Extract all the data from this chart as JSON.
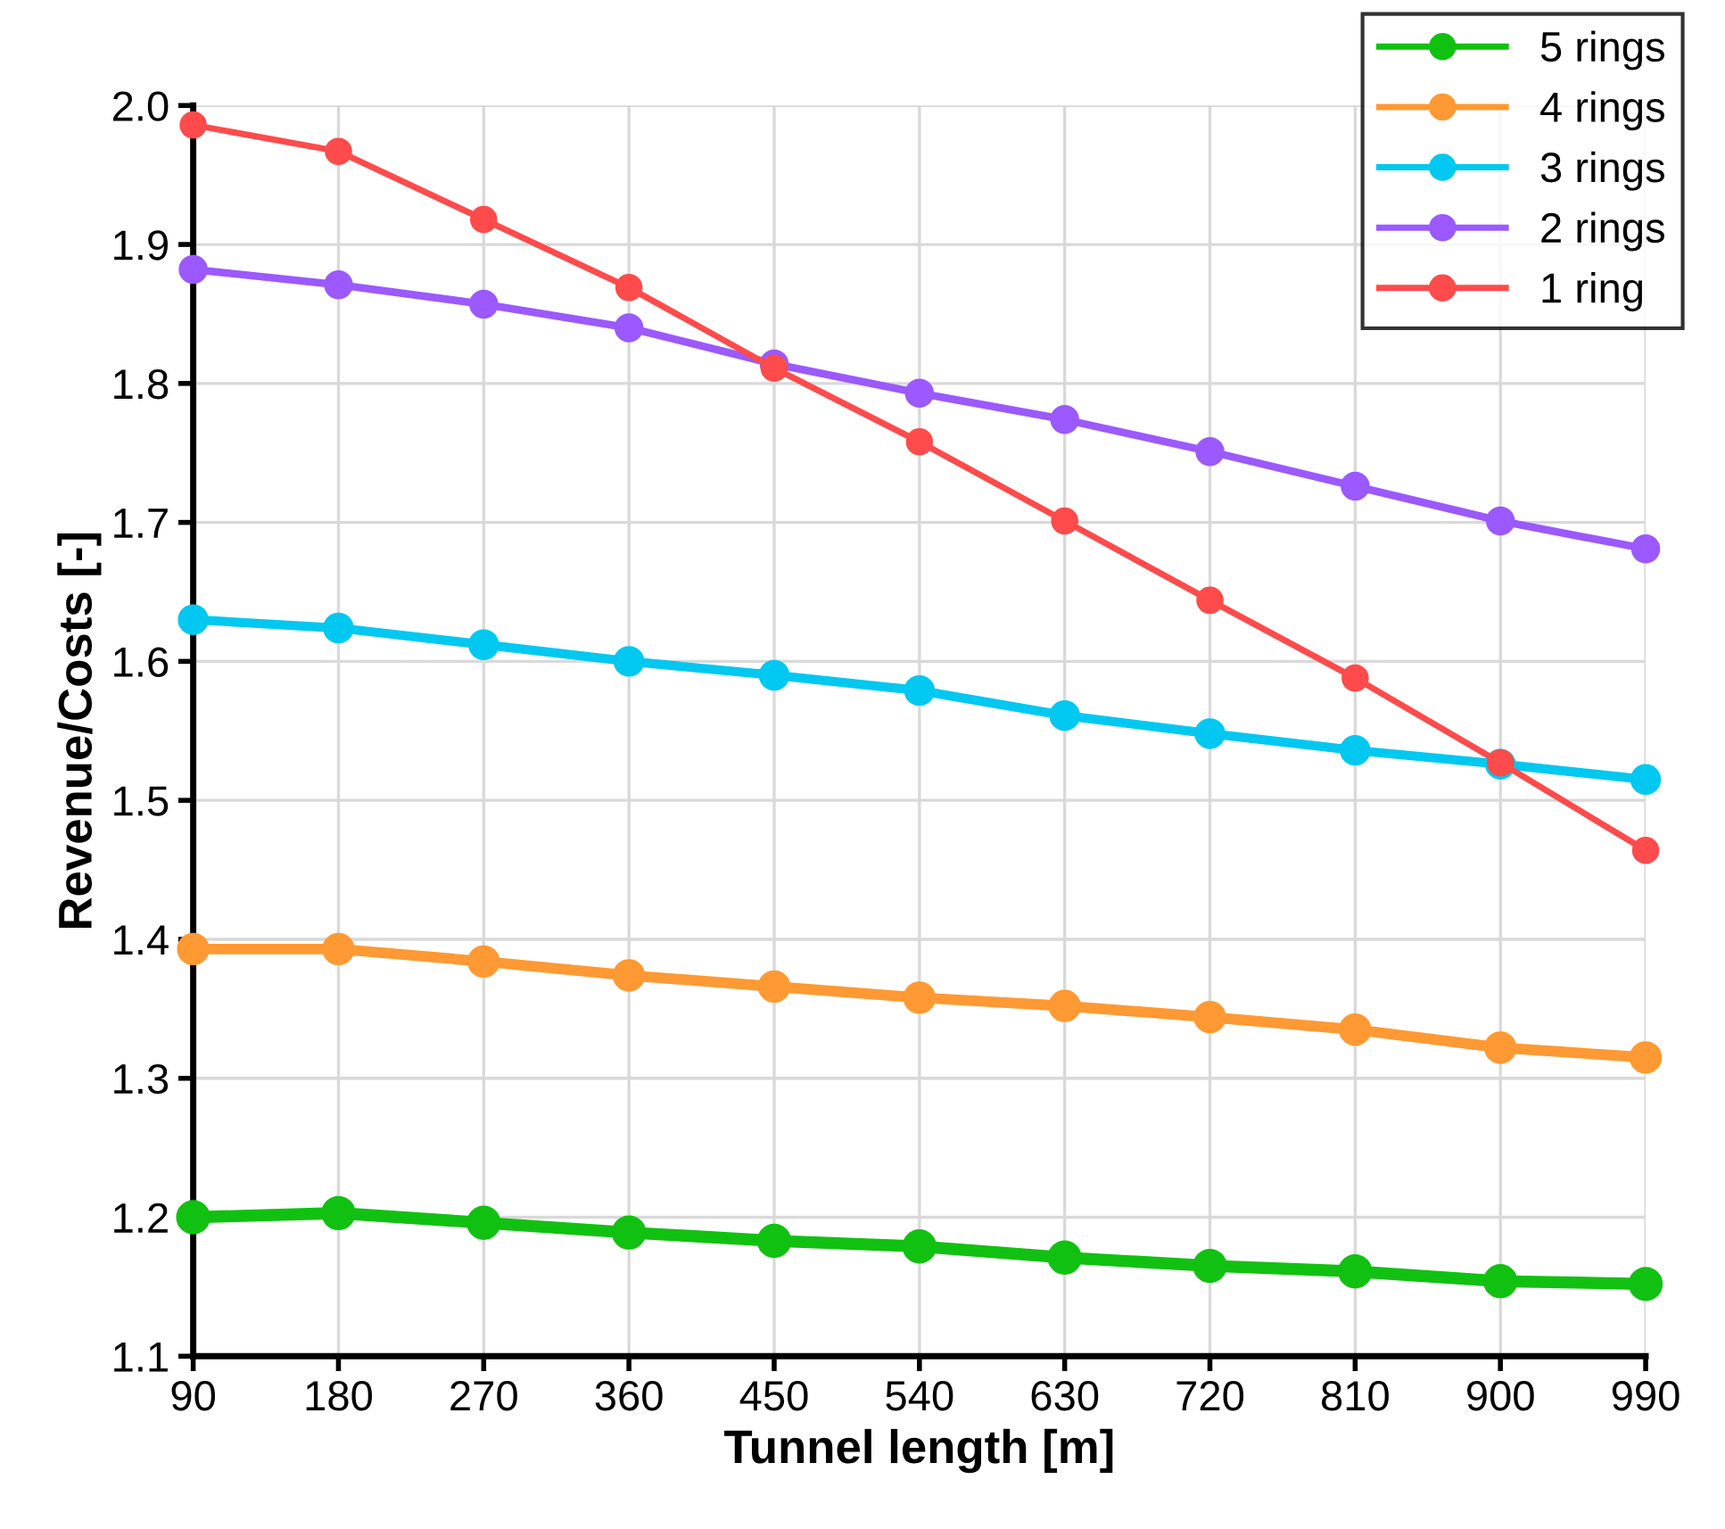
{
  "chart_data": {
    "type": "line",
    "xlabel": "Tunnel length [m]",
    "ylabel": "Revenue/Costs [-]",
    "x": [
      90,
      180,
      270,
      360,
      450,
      540,
      630,
      720,
      810,
      900,
      990
    ],
    "series": [
      {
        "name": "5 rings",
        "color": "#11c111",
        "values": [
          1.2,
          1.203,
          1.196,
          1.189,
          1.183,
          1.179,
          1.171,
          1.165,
          1.161,
          1.154,
          1.152
        ]
      },
      {
        "name": "4 rings",
        "color": "#ff9933",
        "values": [
          1.393,
          1.393,
          1.384,
          1.374,
          1.366,
          1.358,
          1.352,
          1.344,
          1.335,
          1.322,
          1.315
        ]
      },
      {
        "name": "3 rings",
        "color": "#00c8f0",
        "values": [
          1.63,
          1.624,
          1.612,
          1.6,
          1.59,
          1.579,
          1.561,
          1.548,
          1.536,
          1.526,
          1.515
        ]
      },
      {
        "name": "2 rings",
        "color": "#9b59ff",
        "values": [
          1.882,
          1.871,
          1.857,
          1.84,
          1.814,
          1.793,
          1.774,
          1.751,
          1.726,
          1.701,
          1.681
        ]
      },
      {
        "name": "1 ring",
        "color": "#ff4b4b",
        "values": [
          1.986,
          1.967,
          1.918,
          1.869,
          1.811,
          1.758,
          1.701,
          1.644,
          1.588,
          1.527,
          1.464
        ]
      }
    ],
    "xlim": [
      90,
      990
    ],
    "xticks": [
      90,
      180,
      270,
      360,
      450,
      540,
      630,
      720,
      810,
      900,
      990
    ],
    "ylim": [
      1.1,
      2.0
    ],
    "yticks": [
      {
        "value": 1.1,
        "label": "1.1"
      },
      {
        "value": 1.2,
        "label": "1.2"
      },
      {
        "value": 1.3,
        "label": "1.3"
      },
      {
        "value": 1.4,
        "label": "1.4"
      },
      {
        "value": 1.5,
        "label": "1.5"
      },
      {
        "value": 1.6,
        "label": "1.6"
      },
      {
        "value": 1.7,
        "label": "1.7"
      },
      {
        "value": 1.8,
        "label": "1.8"
      },
      {
        "value": 1.9,
        "label": "1.9"
      },
      {
        "value": 2.0,
        "label": "2.0"
      }
    ],
    "grid": true,
    "legend": "top right",
    "marker": "circle",
    "line_style": "solid"
  }
}
